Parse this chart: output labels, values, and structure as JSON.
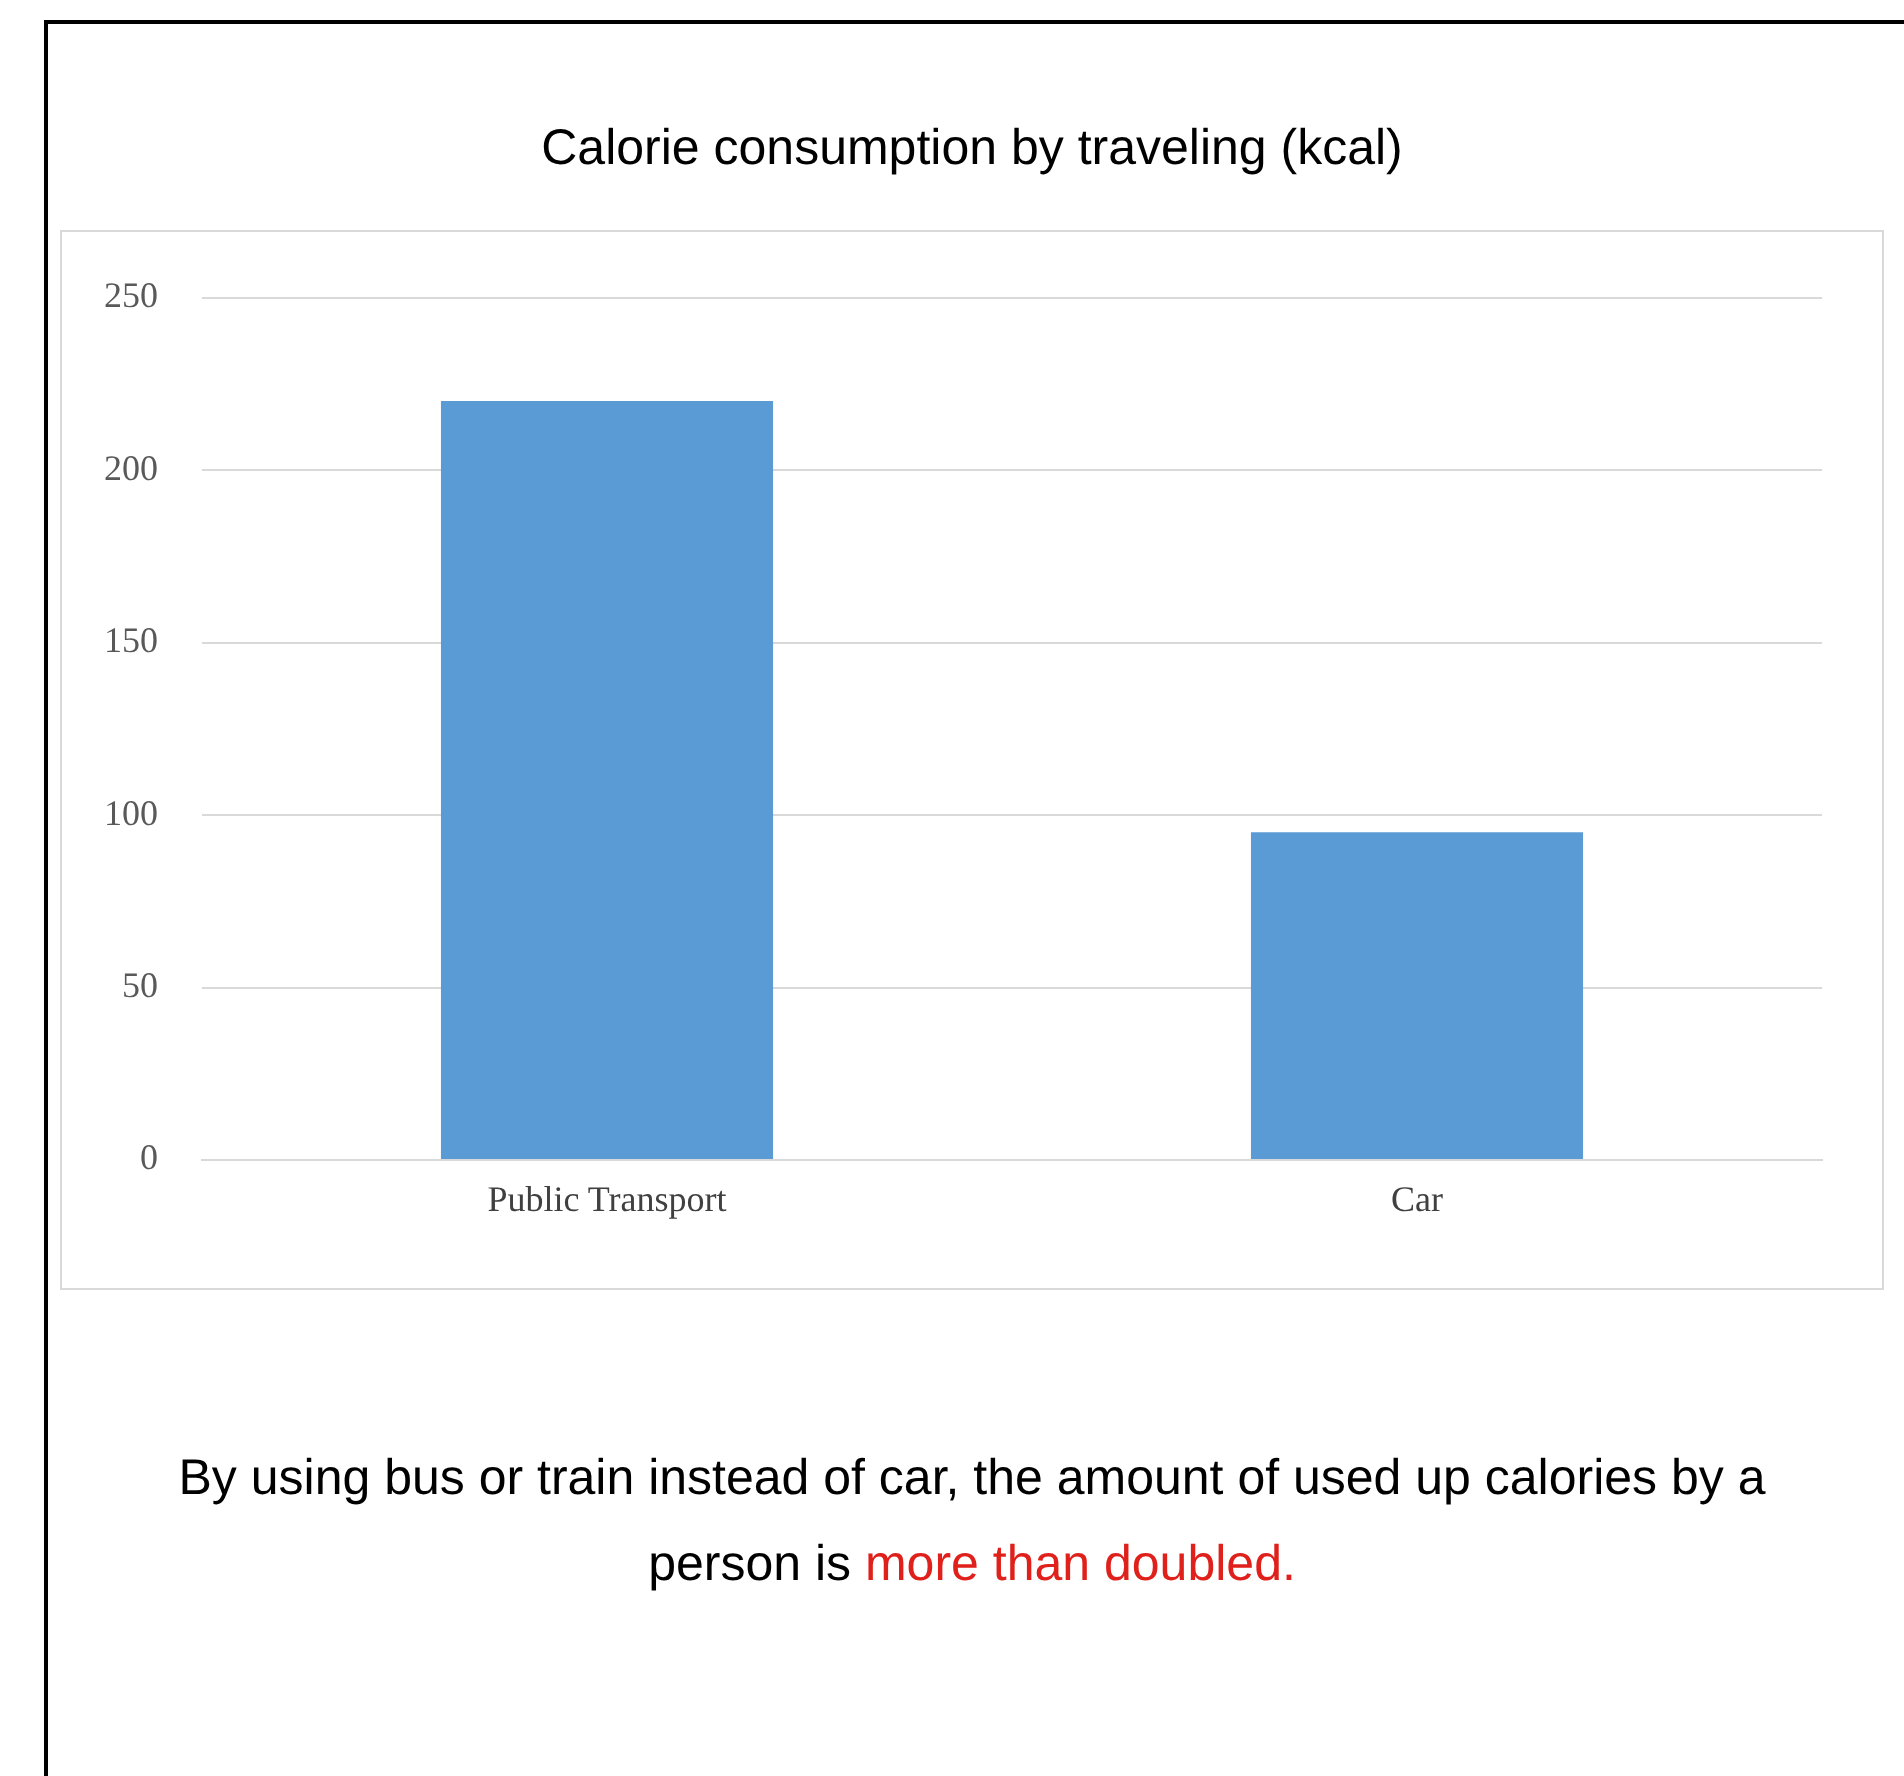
{
  "chart_data": {
    "type": "bar",
    "title": "Calorie consumption by traveling (kcal)",
    "categories": [
      "Public Transport",
      "Car"
    ],
    "values": [
      220,
      95
    ],
    "color": "#5b9bd5",
    "ylim": [
      0,
      250
    ],
    "yticks": [
      0,
      50,
      100,
      150,
      200,
      250
    ],
    "grid": "y",
    "annotations": [
      "By using bus or train instead of car, the amount of used up calories by a person is",
      "more than doubled."
    ]
  }
}
